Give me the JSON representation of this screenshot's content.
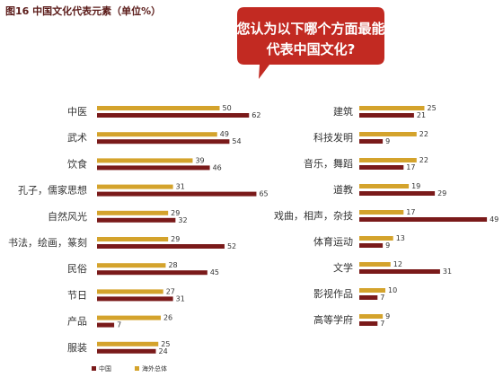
{
  "chart_data": {
    "type": "bar",
    "title": "图16 中国文化代表元素（单位%）",
    "callout": [
      "您认为以下哪个方面最能",
      "代表中国文化?"
    ],
    "colors": {
      "china": "#7a1a1a",
      "overseas": "#d4a32c",
      "bubble": "#c22a22"
    },
    "series": [
      {
        "name": "中国",
        "key": "china"
      },
      {
        "name": "海外总体",
        "key": "overseas"
      }
    ],
    "left_panel": {
      "categories": [
        "中医",
        "武术",
        "饮食",
        "孔子，儒家思想",
        "自然风光",
        "书法，绘画，篆刻",
        "民俗",
        "节日",
        "产品",
        "服装"
      ],
      "overseas": [
        50,
        49,
        39,
        31,
        29,
        29,
        28,
        27,
        26,
        25
      ],
      "china": [
        62,
        54,
        46,
        65,
        32,
        52,
        45,
        31,
        7,
        24
      ]
    },
    "right_panel": {
      "categories": [
        "建筑",
        "科技发明",
        "音乐，舞蹈",
        "道教",
        "戏曲，相声，杂技",
        "体育运动",
        "文学",
        "影视作品",
        "高等学府"
      ],
      "overseas": [
        25,
        22,
        22,
        19,
        17,
        13,
        12,
        10,
        9
      ],
      "china": [
        21,
        9,
        17,
        29,
        49,
        9,
        31,
        7,
        7
      ]
    }
  }
}
